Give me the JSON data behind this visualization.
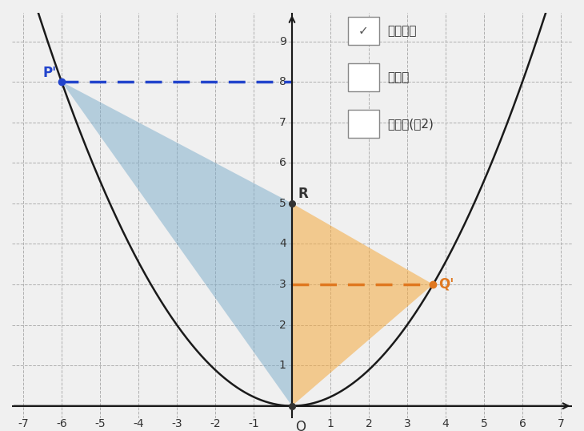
{
  "parabola_k": 4.5,
  "P_prime": [
    -6,
    8
  ],
  "R": [
    0,
    5
  ],
  "Q_prime": [
    3.674,
    3
  ],
  "O": [
    0,
    0
  ],
  "xlim": [
    -7.3,
    7.3
  ],
  "ylim": [
    -0.3,
    9.7
  ],
  "xticks": [
    -7,
    -6,
    -5,
    -4,
    -3,
    -2,
    -1,
    1,
    2,
    3,
    4,
    5,
    6,
    7
  ],
  "yticks": [
    1,
    2,
    3,
    4,
    5,
    6,
    7,
    8,
    9
  ],
  "blue_triangle_color": "#7aabca",
  "blue_triangle_alpha": 0.5,
  "orange_triangle_color": "#f5a93e",
  "orange_triangle_alpha": 0.55,
  "parabola_color": "#1a1a1a",
  "axis_color": "#1a1a1a",
  "grid_color": "#b0b0b0",
  "blue_dashed_color": "#2244cc",
  "orange_dashed_color": "#e07820",
  "P_label": "P'",
  "R_label": "R",
  "Q_label": "Q'",
  "O_label": "O",
  "legend_items": [
    "等積変形",
    "平行線",
    "三角形(緒2)"
  ],
  "legend_checked": [
    true,
    false,
    false
  ],
  "bg_color": "#f0f0f0",
  "figsize": [
    7.3,
    5.38
  ],
  "dpi": 100
}
